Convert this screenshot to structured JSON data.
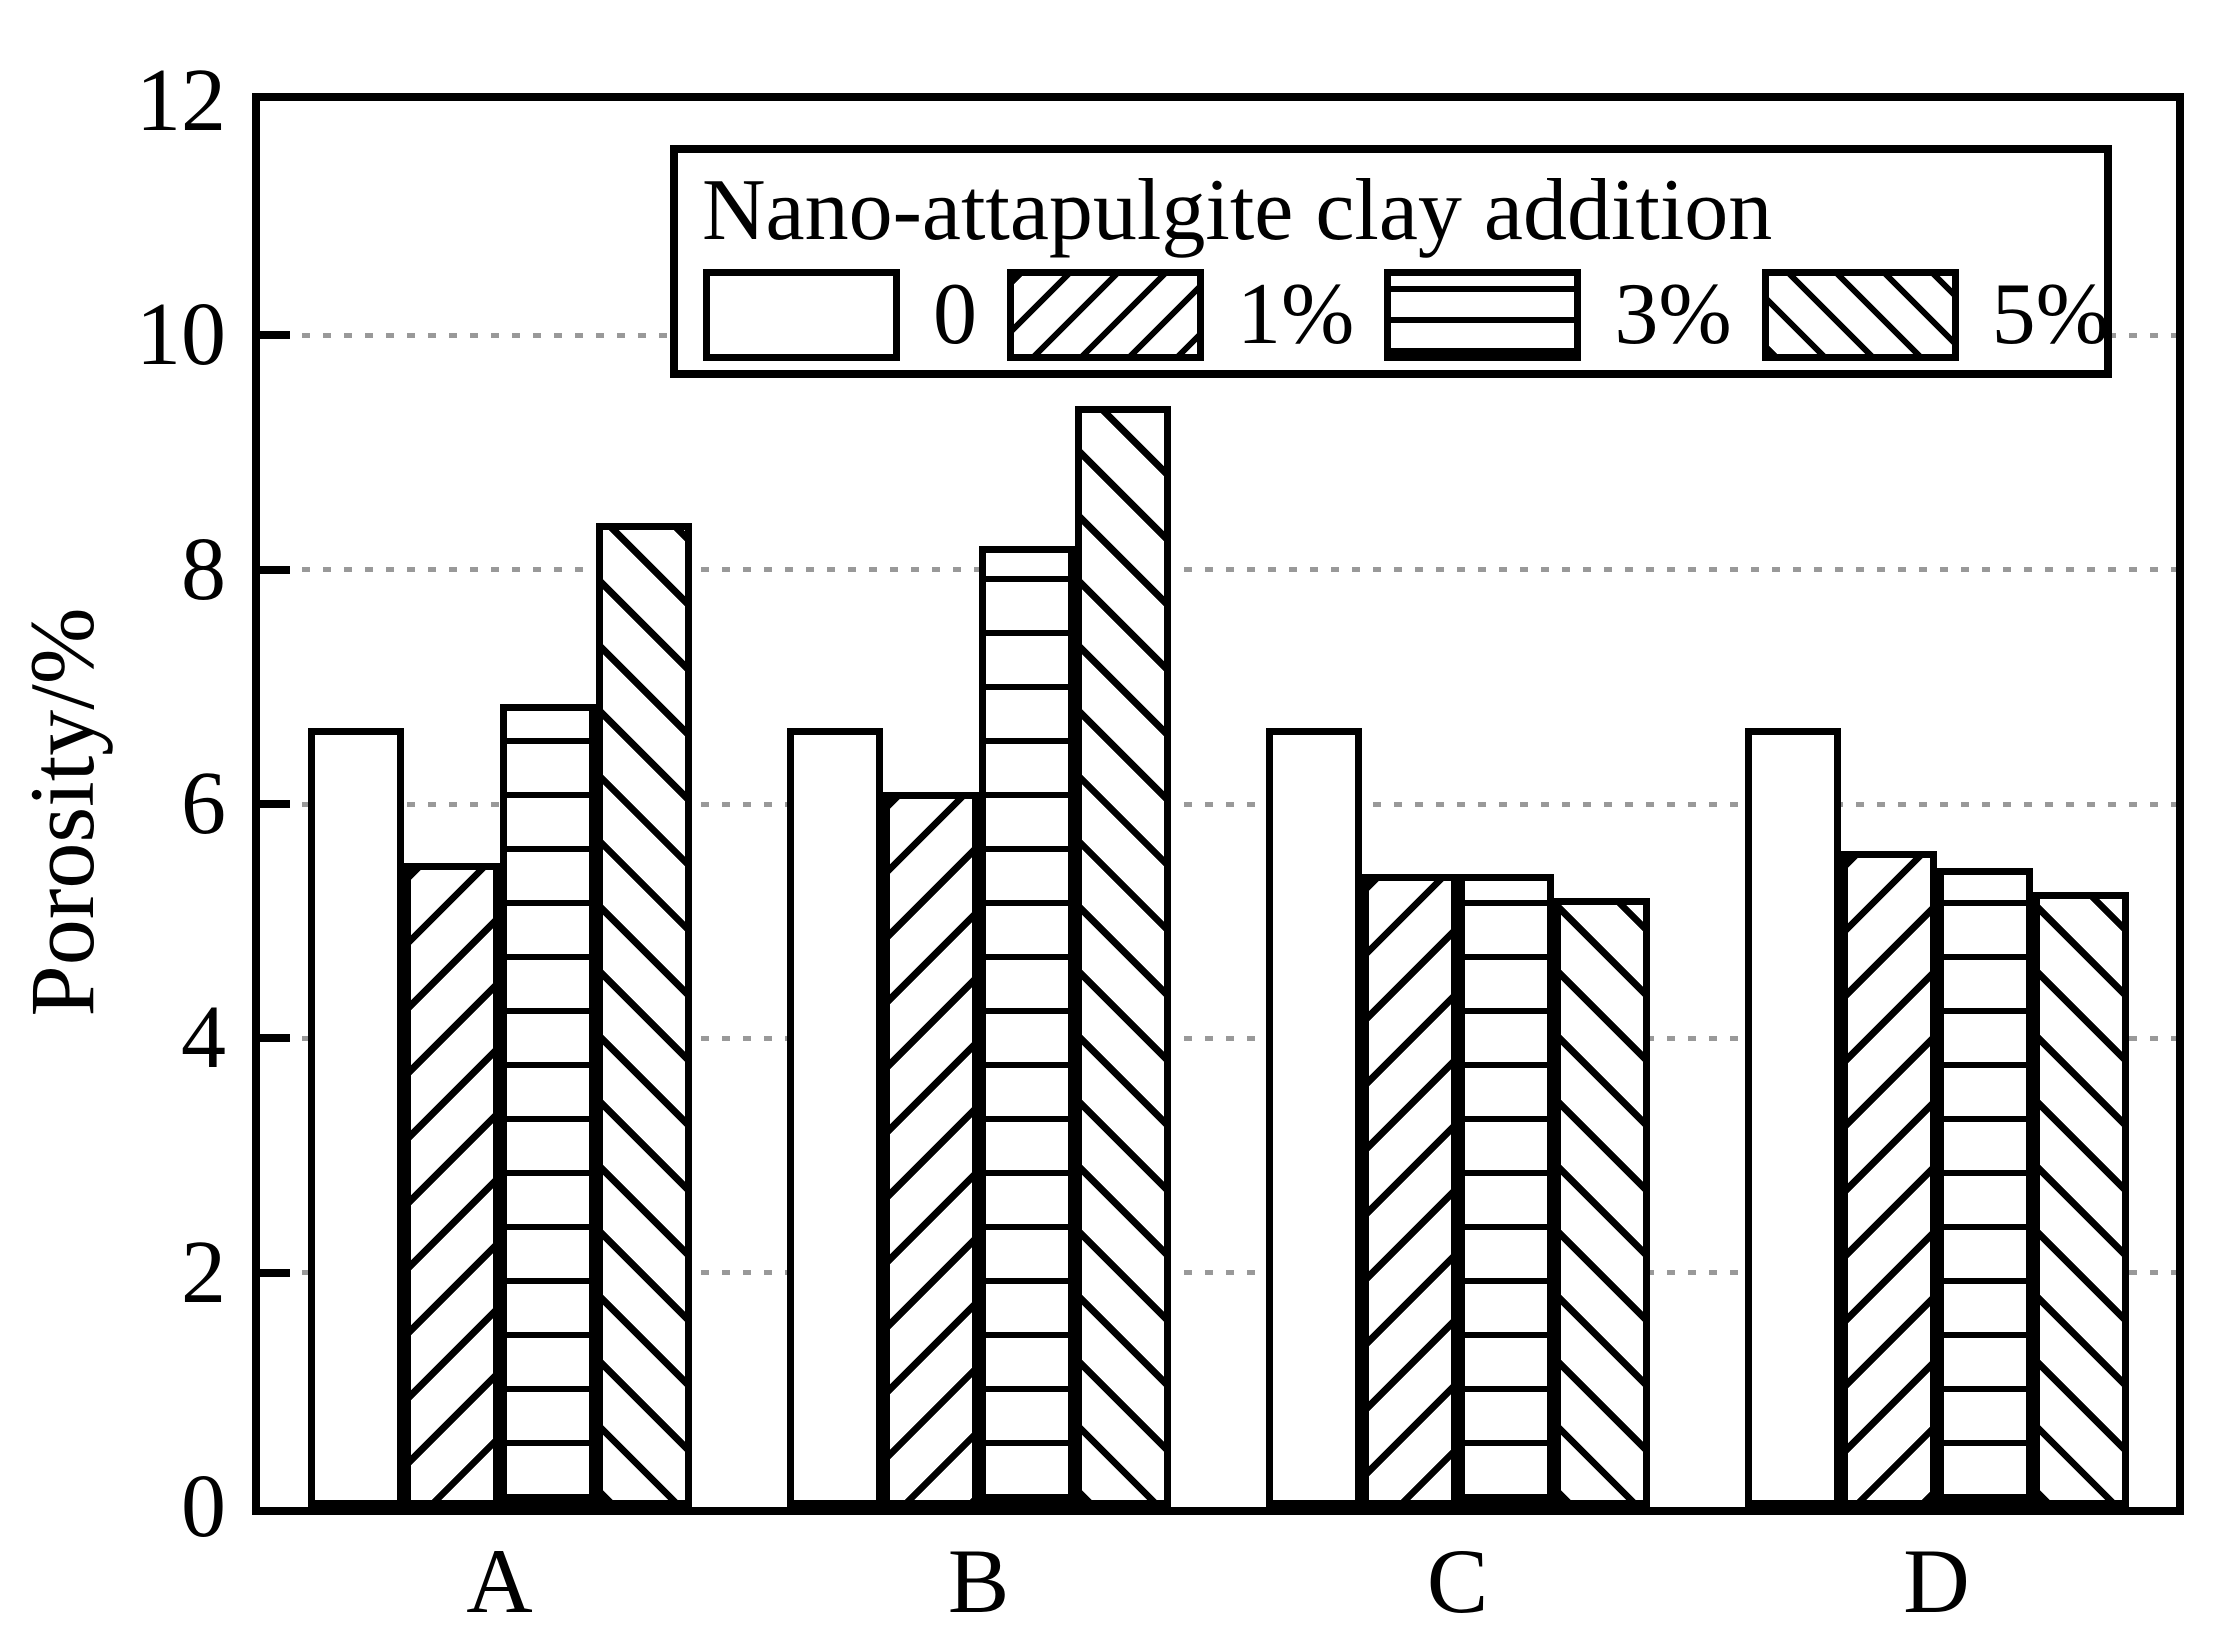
{
  "figure": {
    "background": "#ffffff",
    "ink": "#000000",
    "gridline_color": "#999999"
  },
  "y_axis": {
    "title": "Porosity/%",
    "min": 0,
    "max": 12,
    "tick_step": 2,
    "tick_labels": [
      "0",
      "2",
      "4",
      "6",
      "8",
      "10",
      "12"
    ],
    "gridline_values": [
      2,
      4,
      6,
      8,
      10
    ]
  },
  "x_axis": {
    "categories": [
      "A",
      "B",
      "C",
      "D"
    ]
  },
  "legend": {
    "title": "Nano-attapulgite clay addition",
    "entries": [
      {
        "label": "0",
        "pattern": "plain"
      },
      {
        "label": "1%",
        "pattern": "diagonal-up"
      },
      {
        "label": "3%",
        "pattern": "horizontal"
      },
      {
        "label": "5%",
        "pattern": "diagonal-down"
      }
    ]
  },
  "chart_data": {
    "type": "bar",
    "title": "",
    "xlabel": "",
    "ylabel": "Porosity/%",
    "ylim": [
      0,
      12
    ],
    "grid": "dotted horizontal gridlines at 2, 4, 6, 8, 10",
    "legend_position": "top center inside plot",
    "categories": [
      "A",
      "B",
      "C",
      "D"
    ],
    "series": [
      {
        "name": "0",
        "pattern": "plain",
        "values": [
          6.65,
          6.65,
          6.65,
          6.65
        ]
      },
      {
        "name": "1%",
        "pattern": "diagonal-up",
        "values": [
          5.5,
          6.1,
          5.4,
          5.6
        ]
      },
      {
        "name": "3%",
        "pattern": "horizontal",
        "values": [
          6.85,
          8.2,
          5.4,
          5.45
        ]
      },
      {
        "name": "5%",
        "pattern": "diagonal-down",
        "values": [
          8.4,
          9.4,
          5.2,
          5.25
        ]
      }
    ]
  }
}
